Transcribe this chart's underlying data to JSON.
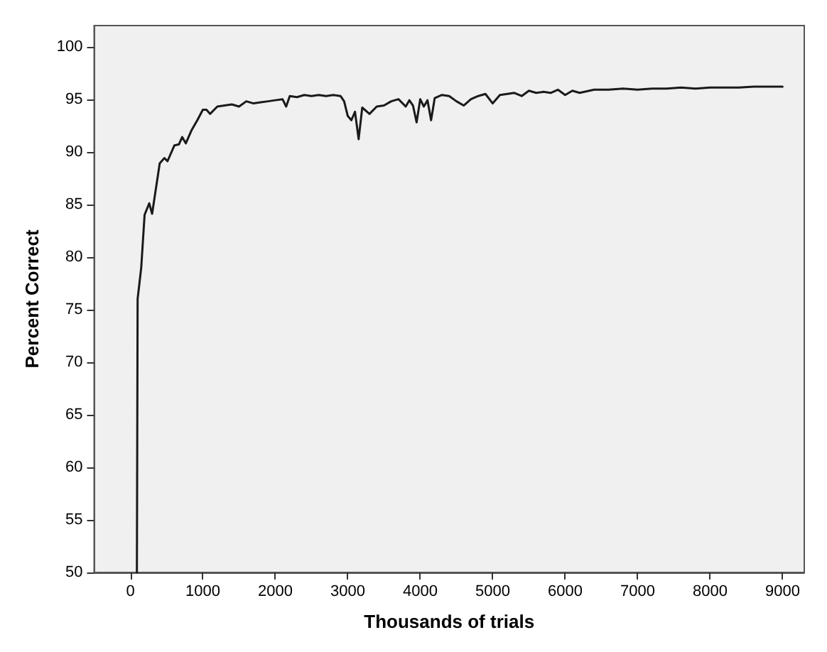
{
  "chart_data": {
    "type": "line",
    "xlabel": "Thousands of trials",
    "ylabel": "Percent Correct",
    "xlim": [
      -500,
      9300
    ],
    "xticks": [
      0,
      1000,
      2000,
      3000,
      4000,
      5000,
      6000,
      7000,
      8000,
      9000
    ],
    "ylim": [
      50,
      102
    ],
    "yticks": [
      50,
      55,
      60,
      65,
      70,
      75,
      80,
      85,
      90,
      95,
      100
    ],
    "grid": false,
    "marker": "none",
    "line_style": "solid",
    "series": [
      {
        "color": "#1a1a1a",
        "x": [
          90,
          100,
          150,
          196,
          260,
          300,
          405,
          470,
          512,
          607,
          670,
          715,
          765,
          841,
          924,
          1000,
          1050,
          1100,
          1200,
          1300,
          1400,
          1500,
          1600,
          1700,
          1800,
          1900,
          2000,
          2100,
          2150,
          2200,
          2300,
          2400,
          2500,
          2600,
          2700,
          2800,
          2900,
          2950,
          3000,
          3050,
          3100,
          3150,
          3200,
          3300,
          3400,
          3500,
          3600,
          3700,
          3800,
          3850,
          3900,
          3950,
          4000,
          4050,
          4100,
          4150,
          4200,
          4300,
          4400,
          4500,
          4600,
          4700,
          4800,
          4900,
          5000,
          5100,
          5200,
          5300,
          5400,
          5500,
          5600,
          5700,
          5800,
          5900,
          6000,
          6100,
          6200,
          6400,
          6600,
          6800,
          7000,
          7200,
          7400,
          7600,
          7800,
          8000,
          8200,
          8400,
          8600,
          8800,
          9000
        ],
        "values": [
          50,
          76,
          79,
          84,
          85.1,
          84.1,
          88.9,
          89.4,
          89.1,
          90.6,
          90.7,
          91.4,
          90.8,
          92,
          93,
          94,
          94,
          93.6,
          94.3,
          94.4,
          94.5,
          94.3,
          94.8,
          94.6,
          94.7,
          94.8,
          94.9,
          95,
          94.3,
          95.3,
          95.2,
          95.4,
          95.3,
          95.4,
          95.3,
          95.4,
          95.3,
          94.8,
          93.4,
          93,
          93.8,
          91.2,
          94.2,
          93.6,
          94.3,
          94.4,
          94.8,
          95,
          94.3,
          94.9,
          94.4,
          92.8,
          95,
          94.3,
          94.9,
          93,
          95.1,
          95.4,
          95.3,
          94.8,
          94.4,
          95,
          95.3,
          95.5,
          94.6,
          95.4,
          95.5,
          95.6,
          95.3,
          95.8,
          95.6,
          95.7,
          95.6,
          95.9,
          95.4,
          95.8,
          95.6,
          95.9,
          95.9,
          96,
          95.9,
          96,
          96,
          96.1,
          96,
          96.1,
          96.1,
          96.1,
          96.2,
          96.2,
          96.2
        ]
      }
    ]
  }
}
